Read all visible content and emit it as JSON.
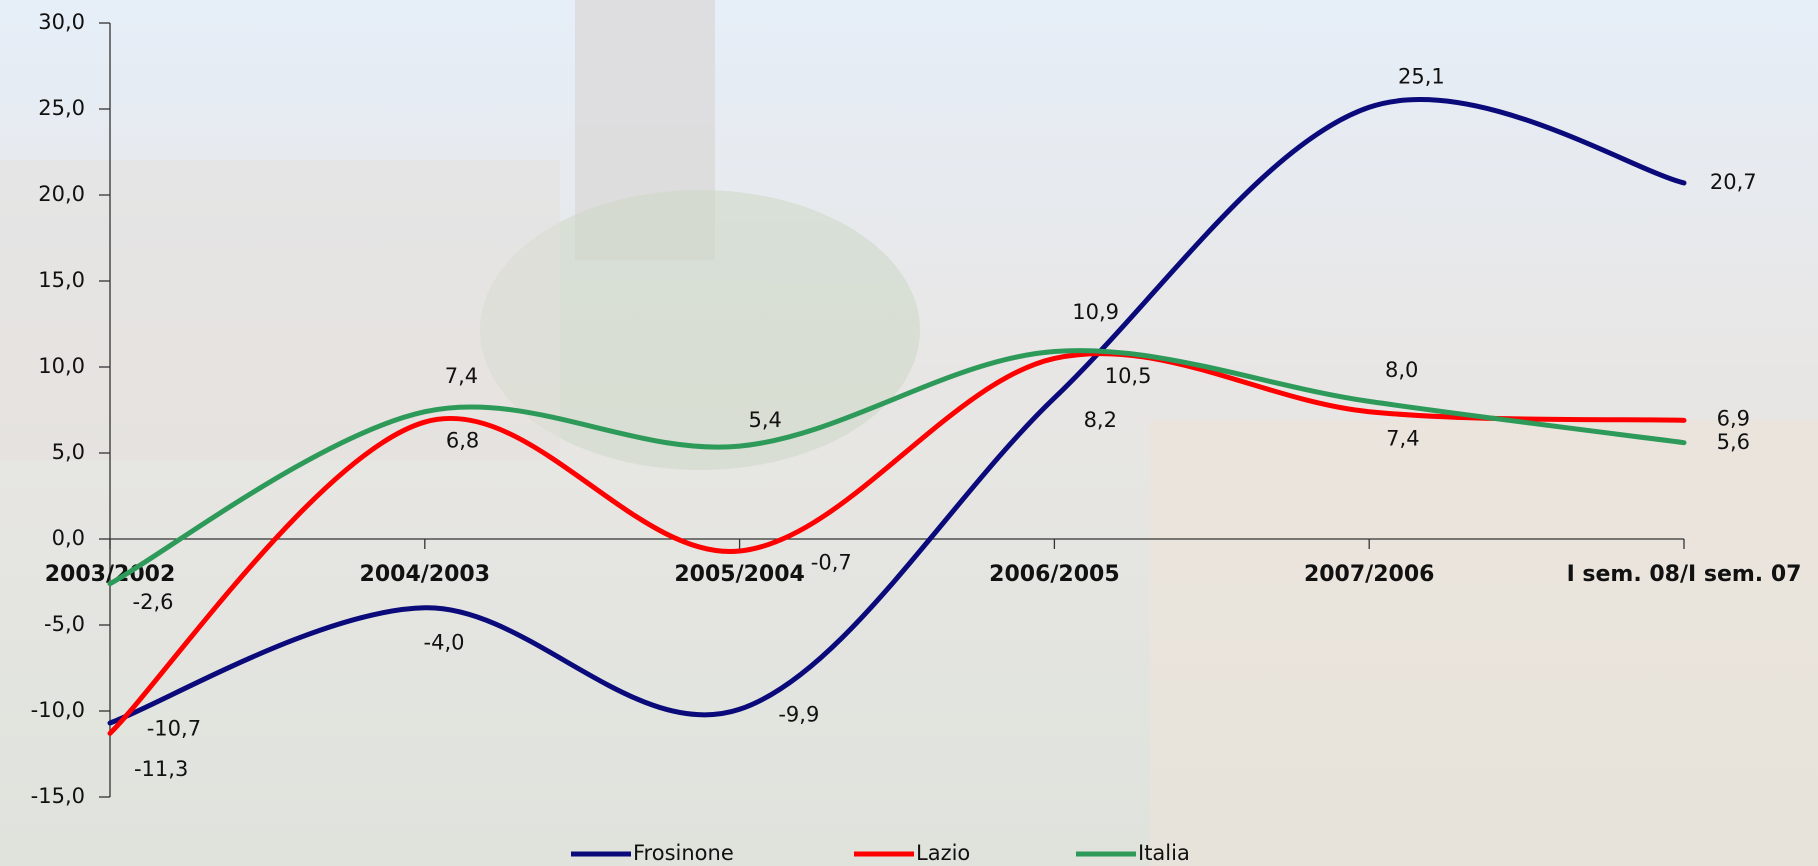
{
  "chart_data": {
    "type": "line",
    "categories": [
      "2003/2002",
      "2004/2003",
      "2005/2004",
      "2006/2005",
      "2007/2006",
      "I sem. 08/I sem. 07"
    ],
    "series": [
      {
        "name": "Frosinone",
        "color": "#0a0a7a",
        "values": [
          -10.7,
          -4.0,
          -9.9,
          8.2,
          25.1,
          20.7
        ],
        "value_labels": [
          "-10,7",
          "-4,0",
          "-9,9",
          "8,2",
          "25,1",
          "20,7"
        ]
      },
      {
        "name": "Lazio",
        "color": "#ff0000",
        "values": [
          -11.3,
          6.8,
          -0.7,
          10.5,
          7.4,
          6.9
        ],
        "value_labels": [
          "-11,3",
          "6,8",
          "-0,7",
          "10,5",
          "7,4",
          "6,9"
        ]
      },
      {
        "name": "Italia",
        "color": "#2e9a5a",
        "values": [
          -2.6,
          7.4,
          5.4,
          10.9,
          8.0,
          5.6
        ],
        "value_labels": [
          "-2,6",
          "7,4",
          "5,4",
          "10,9",
          "8,0",
          "5,6"
        ]
      }
    ],
    "ylim": [
      -15,
      30
    ],
    "yticks": [
      {
        "value": -15,
        "label": "-15,0"
      },
      {
        "value": -10,
        "label": "-10,0"
      },
      {
        "value": -5,
        "label": "-5,0"
      },
      {
        "value": 0,
        "label": "0,0"
      },
      {
        "value": 5,
        "label": "5,0"
      },
      {
        "value": 10,
        "label": "10,0"
      },
      {
        "value": 15,
        "label": "15,0"
      },
      {
        "value": 20,
        "label": "20,0"
      },
      {
        "value": 25,
        "label": "25,0"
      },
      {
        "value": 30,
        "label": "30,0"
      }
    ],
    "grid": false,
    "legend": "bottom"
  }
}
